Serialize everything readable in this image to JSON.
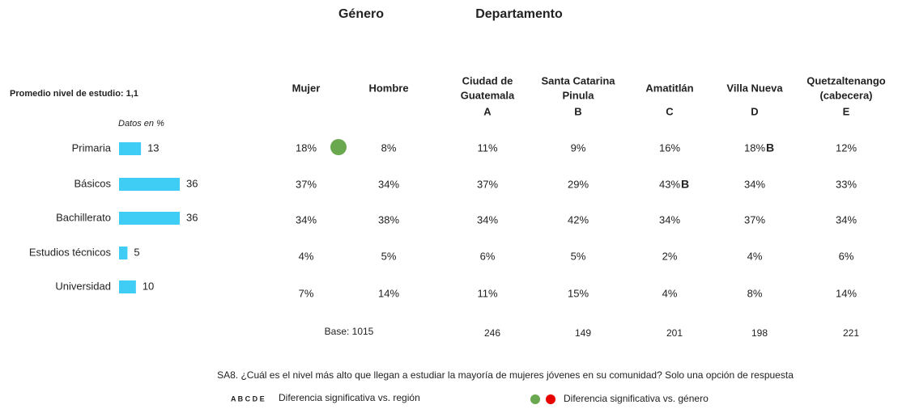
{
  "chart_data": {
    "type": "bar",
    "orientation": "horizontal",
    "title": "Promedio nivel de estudio: 1,1",
    "subtitle": "Datos en %",
    "categories": [
      "Primaria",
      "Básicos",
      "Bachillerato",
      "Estudios técnicos",
      "Universidad"
    ],
    "values": [
      13,
      36,
      36,
      5,
      10
    ],
    "color": "#3fcdf5",
    "title_color": "#3fcdf5"
  },
  "table": {
    "groups": [
      {
        "label": "Género"
      },
      {
        "label": "Departamento"
      }
    ],
    "columns": [
      {
        "header": [
          "Mujer"
        ]
      },
      {
        "header": [
          "Hombre"
        ]
      },
      {
        "header": [
          "Ciudad de",
          "Guatemala"
        ],
        "letter": "A"
      },
      {
        "header": [
          "Santa Catarina",
          "Pinula"
        ],
        "letter": "B"
      },
      {
        "header": [
          "Amatitlán"
        ],
        "letter": "C"
      },
      {
        "header": [
          "Villa Nueva"
        ],
        "letter": "D"
      },
      {
        "header": [
          "Quetzaltenango",
          "(cabecera)"
        ],
        "letter": "E"
      }
    ],
    "rows": [
      [
        {
          "text": "18%",
          "dot": "#6aa84f"
        },
        {
          "text": "8%"
        },
        {
          "text": "11%"
        },
        {
          "text": "9%"
        },
        {
          "text": "16%"
        },
        {
          "text": "18%",
          "sig": "B"
        },
        {
          "text": "12%"
        }
      ],
      [
        {
          "text": "37%"
        },
        {
          "text": "34%"
        },
        {
          "text": "37%"
        },
        {
          "text": "29%"
        },
        {
          "text": "43%",
          "sig": "B"
        },
        {
          "text": "34%"
        },
        {
          "text": "33%"
        }
      ],
      [
        {
          "text": "34%"
        },
        {
          "text": "38%"
        },
        {
          "text": "34%"
        },
        {
          "text": "42%"
        },
        {
          "text": "34%"
        },
        {
          "text": "37%"
        },
        {
          "text": "34%"
        }
      ],
      [
        {
          "text": "4%"
        },
        {
          "text": "5%"
        },
        {
          "text": "6%"
        },
        {
          "text": "5%"
        },
        {
          "text": "2%"
        },
        {
          "text": "4%"
        },
        {
          "text": "6%"
        }
      ],
      [
        {
          "text": "7%"
        },
        {
          "text": "14%"
        },
        {
          "text": "11%"
        },
        {
          "text": "15%"
        },
        {
          "text": "4%"
        },
        {
          "text": "8%"
        },
        {
          "text": "14%"
        }
      ]
    ],
    "bases": {
      "gender": "Base: 1015",
      "departments": [
        "246",
        "149",
        "201",
        "198",
        "221"
      ]
    },
    "sig_color": "#e60000"
  },
  "footer": {
    "question": "SA8. ¿Cuál es el nivel más alto que llegan a estudiar la mayoría de mujeres jóvenes en su comunidad? Solo una opción de respuesta",
    "legend": [
      {
        "symbol": "A B C D E",
        "label": "Diferencia significativa vs. región"
      },
      {
        "dots": [
          "#6aa84f",
          "#e60000"
        ],
        "label": "Diferencia significativa vs. género"
      }
    ]
  }
}
